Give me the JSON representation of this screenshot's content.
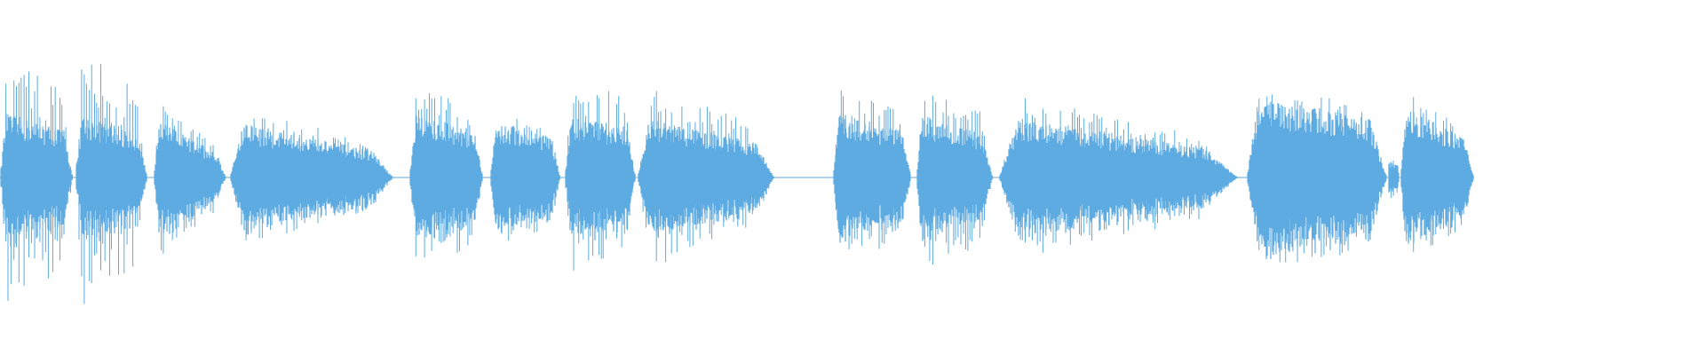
{
  "chart_data": {
    "type": "area",
    "title": "",
    "xlabel": "",
    "ylabel": "",
    "grid": false,
    "legend": "none",
    "color": "#5dabe1",
    "background": "#ffffff",
    "ylim": [
      -1,
      1
    ],
    "xlim": [
      0,
      1920
    ],
    "segments": [
      {
        "start": 0,
        "end": 82,
        "peak": 0.78,
        "body": 0.32,
        "decay": 0.3
      },
      {
        "start": 85,
        "end": 166,
        "peak": 0.82,
        "body": 0.32,
        "decay": 0.4
      },
      {
        "start": 173,
        "end": 255,
        "peak": 0.52,
        "body": 0.3,
        "decay": 0.7
      },
      {
        "start": 259,
        "end": 443,
        "peak": 0.45,
        "body": 0.28,
        "decay": 0.6
      },
      {
        "start": 461,
        "end": 544,
        "peak": 0.58,
        "body": 0.32,
        "decay": 0.3
      },
      {
        "start": 552,
        "end": 631,
        "peak": 0.42,
        "body": 0.28,
        "decay": 0.3
      },
      {
        "start": 636,
        "end": 716,
        "peak": 0.6,
        "body": 0.3,
        "decay": 0.2
      },
      {
        "start": 718,
        "end": 872,
        "peak": 0.58,
        "body": 0.3,
        "decay": 0.5
      },
      {
        "start": 938,
        "end": 1026,
        "peak": 0.55,
        "body": 0.32,
        "decay": 0.3
      },
      {
        "start": 1032,
        "end": 1118,
        "peak": 0.62,
        "body": 0.32,
        "decay": 0.4
      },
      {
        "start": 1125,
        "end": 1394,
        "peak": 0.52,
        "body": 0.3,
        "decay": 0.6
      },
      {
        "start": 1404,
        "end": 1562,
        "peak": 0.6,
        "body": 0.4,
        "decay": 0.3
      },
      {
        "start": 1563,
        "end": 1576,
        "peak": 0.15,
        "body": 0.08,
        "decay": 0.2
      },
      {
        "start": 1577,
        "end": 1660,
        "peak": 0.55,
        "body": 0.35,
        "decay": 0.5
      }
    ]
  }
}
